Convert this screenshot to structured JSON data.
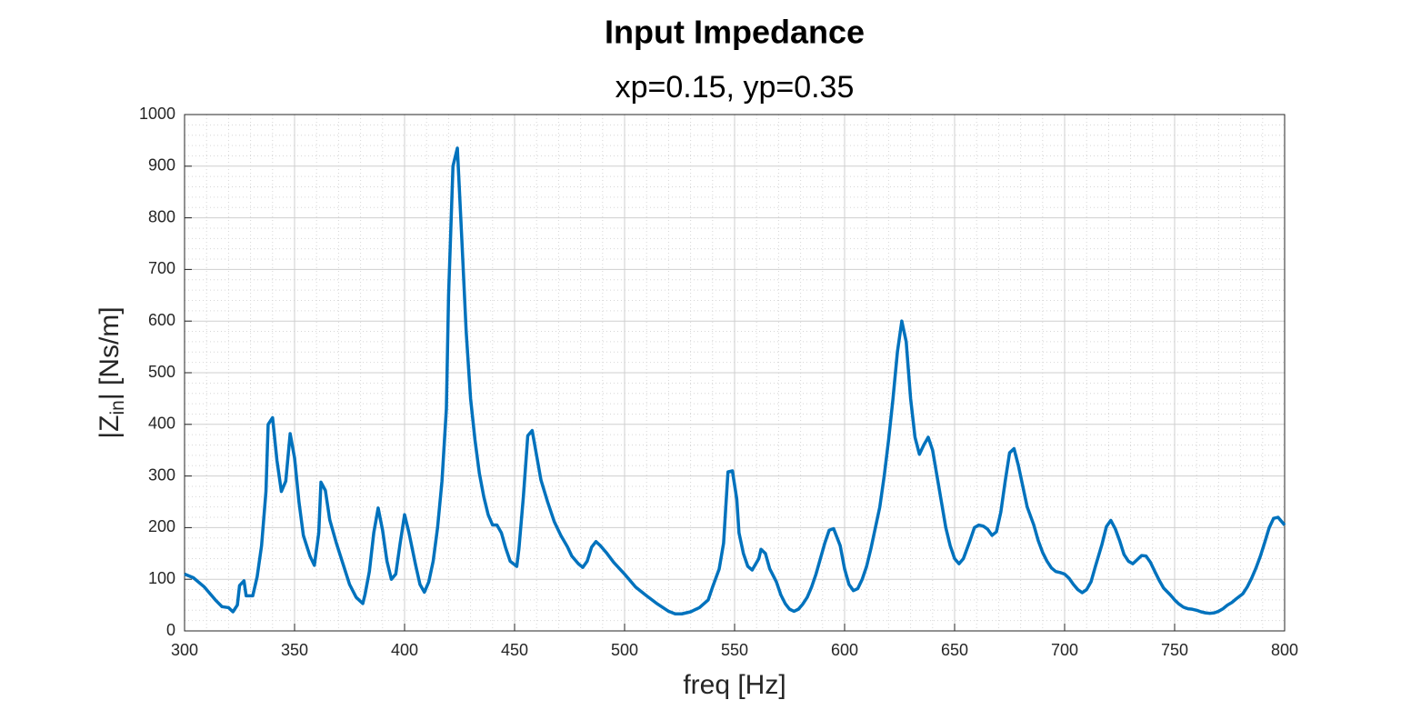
{
  "chart_data": {
    "type": "line",
    "title": "Input Impedance",
    "subtitle": "xp=0.15, yp=0.35",
    "xlabel": "freq [Hz]",
    "ylabel": [
      "|Z",
      "in",
      "| [Ns/m]"
    ],
    "xlim": [
      300,
      800
    ],
    "xticks": [
      300,
      350,
      400,
      450,
      500,
      550,
      600,
      650,
      700,
      750,
      800
    ],
    "ylim": [
      0,
      1000
    ],
    "yticks": [
      0,
      100,
      200,
      300,
      400,
      500,
      600,
      700,
      800,
      900,
      1000
    ],
    "grid": true,
    "minor_grid": true,
    "x": [
      300,
      304,
      309,
      314,
      317,
      320,
      322,
      324,
      325,
      327,
      328,
      331,
      333,
      335,
      337,
      338,
      340,
      342,
      344,
      346,
      348,
      350,
      352,
      354,
      357,
      359,
      361,
      362,
      364,
      366,
      369,
      372,
      375,
      378,
      381,
      382,
      384,
      386,
      388,
      390,
      392,
      394,
      396,
      398,
      400,
      402,
      405,
      407,
      409,
      411,
      413,
      415,
      417,
      419,
      420,
      422,
      424,
      426,
      428,
      430,
      432,
      434,
      436,
      438,
      440,
      442,
      444,
      446,
      448,
      451,
      452,
      454,
      456,
      458,
      460,
      462,
      465,
      468,
      471,
      474,
      476,
      479,
      481,
      483,
      485,
      487,
      489,
      492,
      495,
      500,
      505,
      510,
      515,
      520,
      523,
      526,
      530,
      534,
      538,
      540,
      543,
      545,
      546,
      547,
      549,
      551,
      552,
      554,
      556,
      558,
      561,
      562,
      564,
      566,
      569,
      571,
      573,
      575,
      577,
      579,
      581,
      583,
      585,
      587,
      589,
      591,
      593,
      595,
      598,
      600,
      602,
      604,
      606,
      608,
      610,
      612,
      614,
      616,
      618,
      620,
      622,
      624,
      626,
      628,
      630,
      632,
      634,
      636,
      638,
      640,
      642,
      644,
      646,
      648,
      650,
      652,
      654,
      657,
      659,
      661,
      663,
      665,
      667,
      669,
      671,
      673,
      675,
      677,
      679,
      681,
      683,
      686,
      688,
      690,
      692,
      694,
      696,
      698,
      700,
      702,
      704,
      706,
      708,
      710,
      712,
      714,
      717,
      719,
      721,
      723,
      725,
      727,
      729,
      731,
      733,
      735,
      737,
      739,
      741,
      743,
      745,
      748,
      750,
      752,
      754,
      756,
      758,
      760,
      762,
      764,
      766,
      768,
      770,
      772,
      774,
      776,
      778,
      781,
      783,
      785,
      787,
      789,
      791,
      793,
      795,
      797,
      800
    ],
    "series": [
      {
        "color": "#0072BD",
        "values": [
          110,
          103,
          85,
          60,
          47,
          45,
          37,
          50,
          88,
          97,
          68,
          68,
          105,
          165,
          270,
          400,
          413,
          330,
          270,
          290,
          382,
          335,
          250,
          185,
          145,
          127,
          190,
          288,
          272,
          215,
          170,
          130,
          90,
          65,
          53,
          70,
          115,
          190,
          238,
          195,
          135,
          100,
          110,
          170,
          225,
          190,
          128,
          90,
          75,
          95,
          135,
          200,
          290,
          430,
          650,
          900,
          935,
          760,
          580,
          450,
          370,
          305,
          260,
          225,
          205,
          205,
          190,
          160,
          135,
          125,
          160,
          260,
          378,
          388,
          340,
          292,
          250,
          212,
          185,
          163,
          145,
          130,
          123,
          135,
          162,
          173,
          165,
          150,
          133,
          110,
          85,
          68,
          52,
          38,
          33,
          33,
          37,
          45,
          60,
          85,
          120,
          170,
          240,
          308,
          310,
          255,
          190,
          150,
          125,
          118,
          140,
          158,
          150,
          120,
          95,
          70,
          53,
          42,
          38,
          42,
          52,
          65,
          85,
          110,
          140,
          170,
          195,
          198,
          165,
          120,
          90,
          78,
          82,
          100,
          125,
          160,
          200,
          240,
          300,
          370,
          450,
          540,
          600,
          560,
          450,
          375,
          342,
          360,
          375,
          350,
          300,
          250,
          200,
          165,
          140,
          130,
          140,
          175,
          200,
          205,
          203,
          197,
          185,
          192,
          230,
          290,
          345,
          353,
          320,
          280,
          240,
          205,
          175,
          152,
          135,
          122,
          115,
          113,
          110,
          102,
          90,
          80,
          74,
          80,
          95,
          125,
          168,
          202,
          214,
          198,
          175,
          148,
          135,
          130,
          138,
          146,
          145,
          133,
          115,
          98,
          83,
          70,
          60,
          52,
          46,
          43,
          42,
          40,
          37,
          35,
          34,
          35,
          38,
          43,
          50,
          55,
          62,
          72,
          85,
          102,
          122,
          145,
          172,
          200,
          218,
          220,
          205
        ]
      }
    ]
  }
}
